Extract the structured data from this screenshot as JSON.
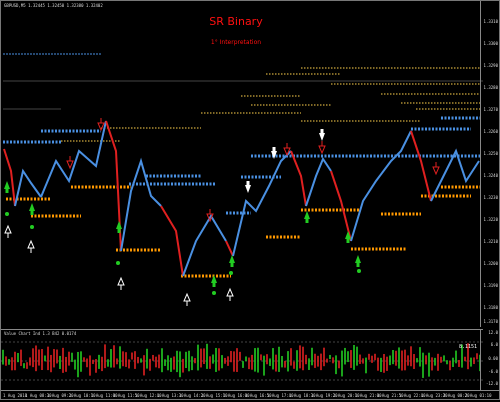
{
  "chart": {
    "symbol_line": "GBPUSD,M5  1.32445 1.32450 1.32380 1.32402",
    "title": "SR Binary",
    "subtitle": "1° Interpretation",
    "price_ticks": [
      "1.3310",
      "1.3300",
      "1.3290",
      "1.3280",
      "1.3270",
      "1.3260",
      "1.3250",
      "1.3240",
      "1.3230",
      "1.3220",
      "1.3210",
      "1.3200",
      "1.3190",
      "1.3180",
      "1.3170"
    ],
    "osc_title": "Value Chart Ind 1.3 B42 0.0174",
    "osc_ticks": [
      "12.0",
      "6.0",
      "0.00",
      "-6.0",
      "-12.0"
    ],
    "osc_value": "8.1151",
    "time_ticks": [
      "1 Aug 2018",
      "1 Aug 08:30",
      "1 Aug 09:20",
      "1 Aug 10:10",
      "1 Aug 11:00",
      "1 Aug 11:50",
      "1 Aug 12:40",
      "1 Aug 13:30",
      "1 Aug 14:20",
      "1 Aug 15:10",
      "1 Aug 16:00",
      "1 Aug 16:50",
      "1 Aug 17:40",
      "1 Aug 18:30",
      "1 Aug 19:20",
      "1 Aug 20:10",
      "1 Aug 21:00",
      "1 Aug 21:50",
      "1 Aug 22:40",
      "1 Aug 23:30",
      "2 Aug 00:20",
      "2 Aug 01:10"
    ]
  },
  "colors": {
    "background": "#000000",
    "up_line": "#4a90e2",
    "down_line": "#e02020",
    "support_dots": "#ff9900",
    "resistance_dots": "#4a90e2",
    "upper_band": "#ffd24d",
    "buy_arrow": "#22cc22",
    "sell_arrow": "#ffffff",
    "title": "#ff1010"
  },
  "icons": {
    "buy": "green-up-arrow",
    "sell": "white-down-arrow",
    "alert_up": "white-up-arrow",
    "alert_down": "red-down-arrow"
  }
}
